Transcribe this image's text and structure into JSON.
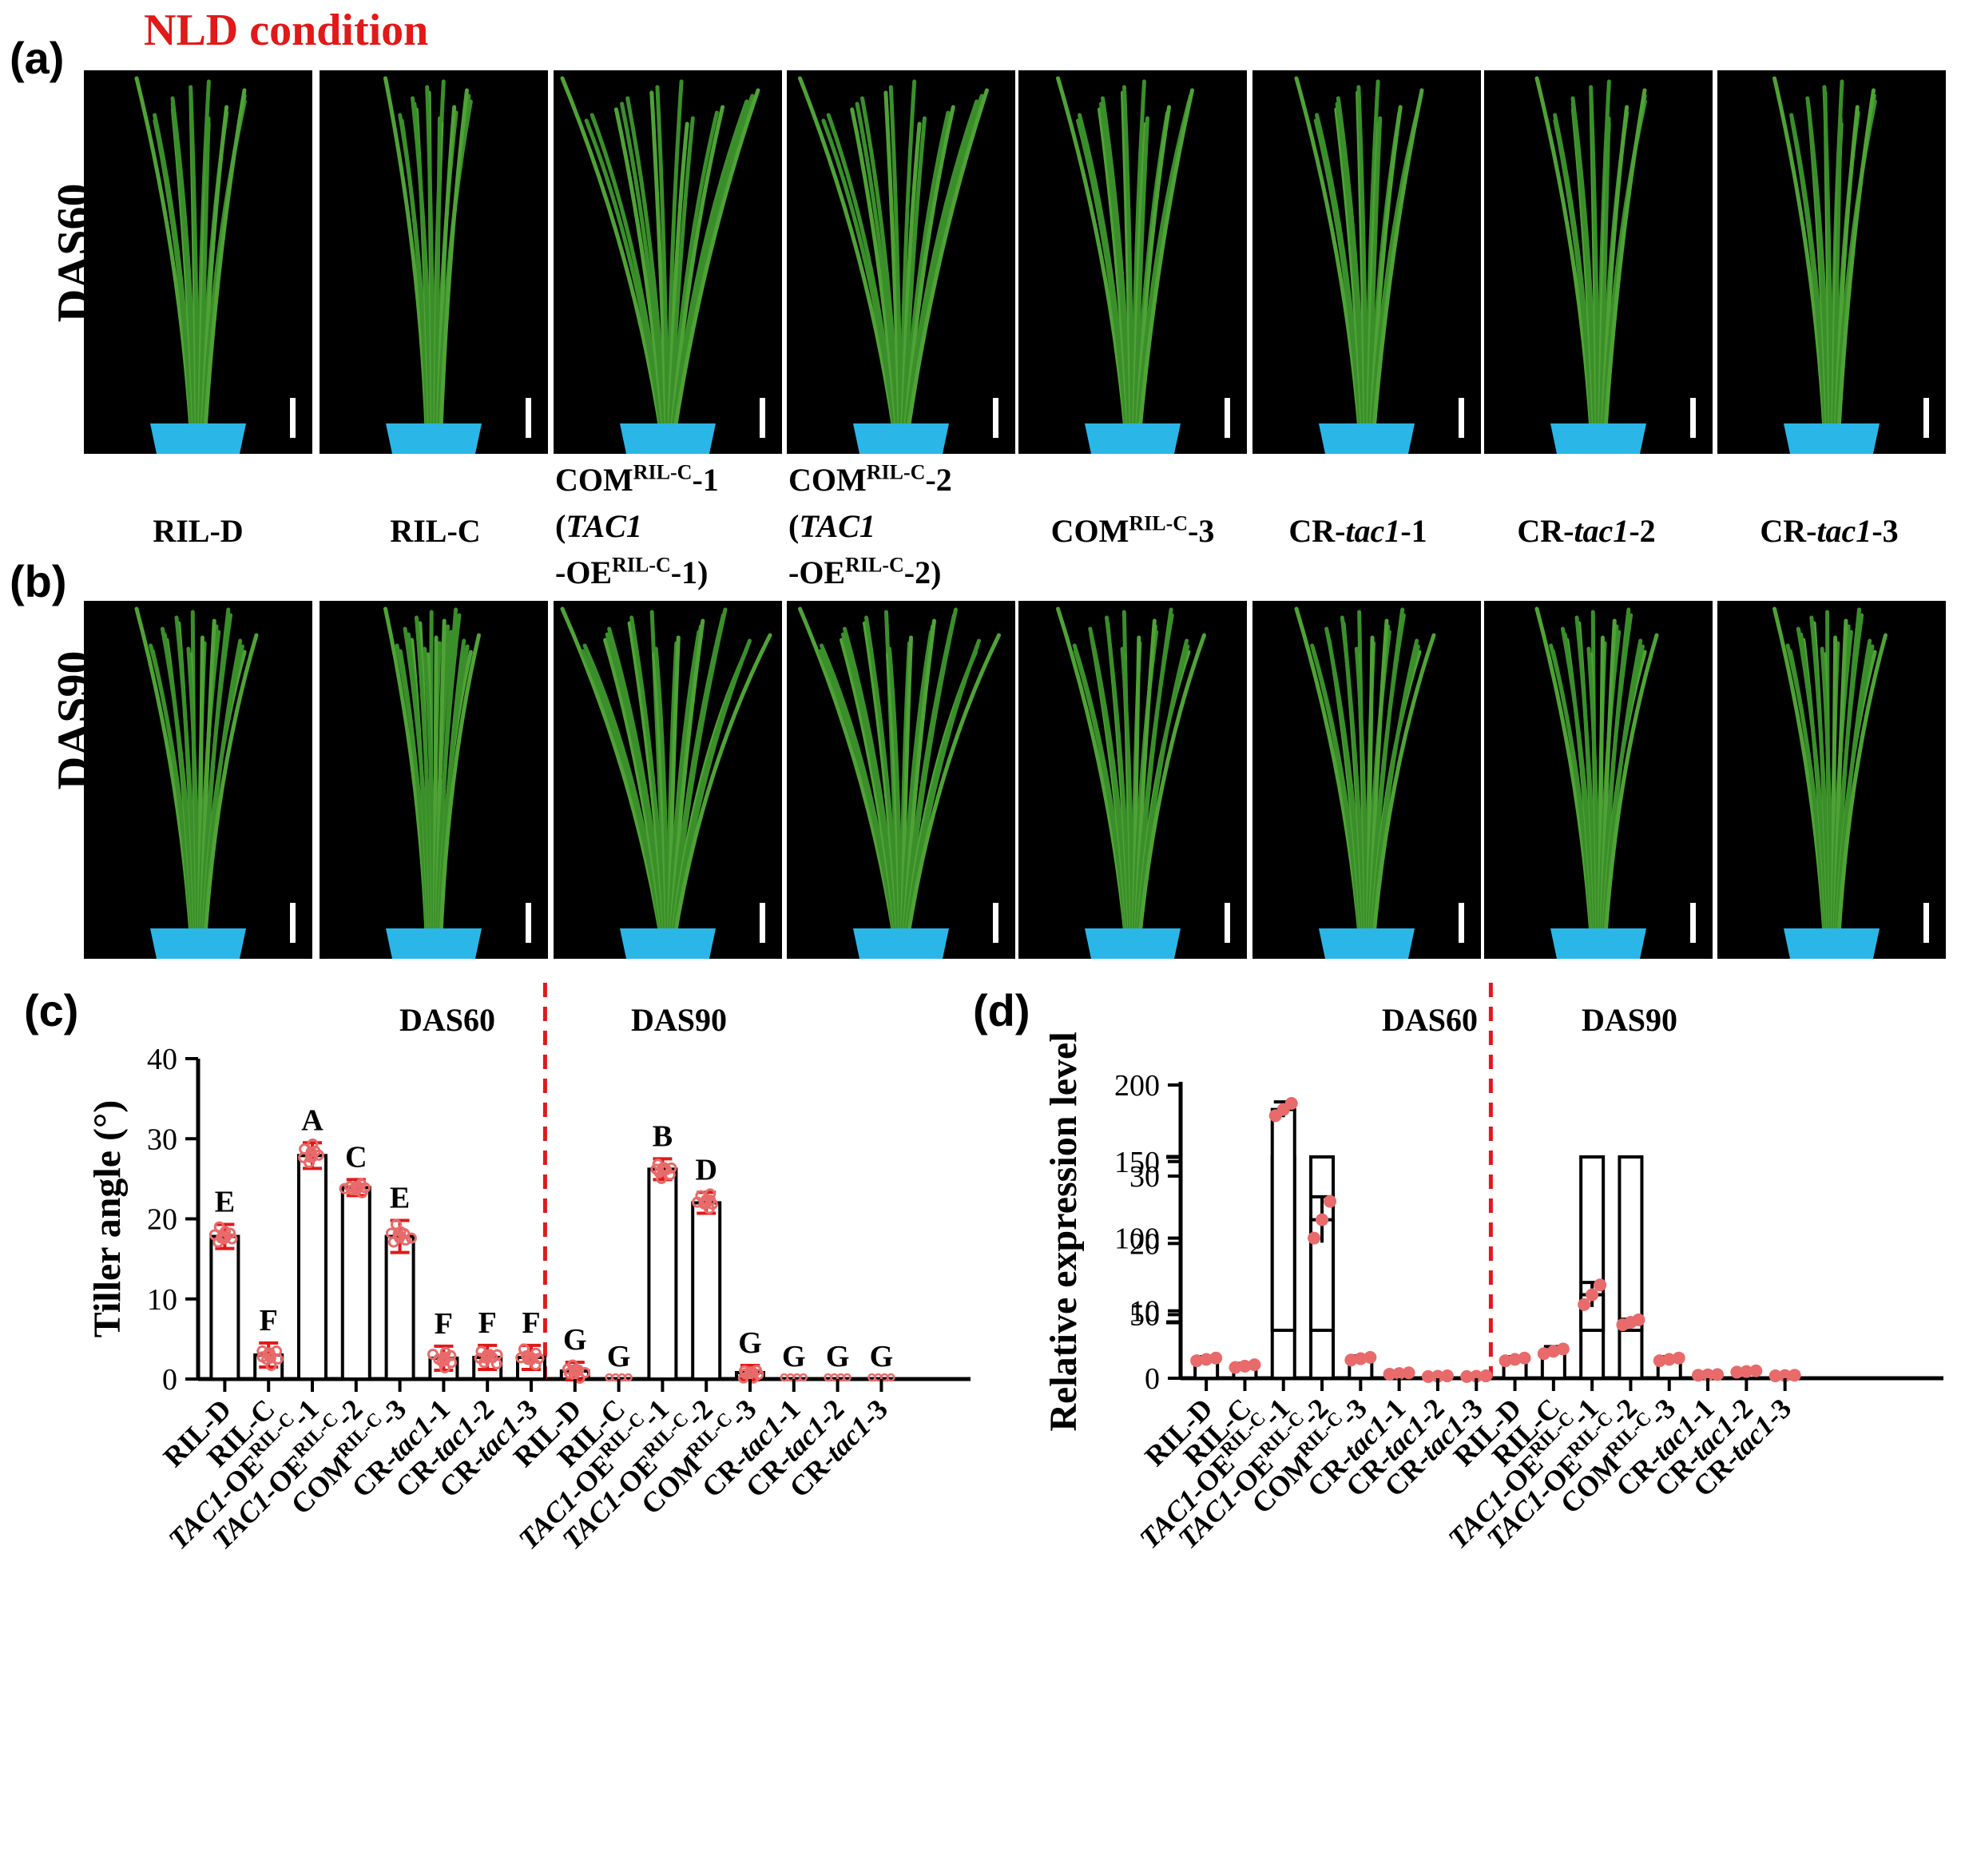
{
  "panel_labels": {
    "a": "(a)",
    "b": "(b)",
    "c": "(c)",
    "d": "(d)"
  },
  "condition": "NLD condition",
  "rows": {
    "a": "DAS60",
    "b": "DAS90"
  },
  "genotypes": [
    {
      "main": "RIL-D"
    },
    {
      "main": "RIL-C"
    },
    {
      "pre": "COM",
      "sup": "RIL-C",
      "post": "-1",
      "l2": "(TAC1",
      "l3a": "-OE",
      "l3sup": "RIL-C",
      "l3b": "-1)"
    },
    {
      "pre": "COM",
      "sup": "RIL-C",
      "post": "-2",
      "l2": "(TAC1",
      "l3a": "-OE",
      "l3sup": "RIL-C",
      "l3b": "-2)"
    },
    {
      "pre": "COM",
      "sup": "RIL-C",
      "post": "-3"
    },
    {
      "pre": "CR-",
      "it": "tac1",
      "post": "-1"
    },
    {
      "pre": "CR-",
      "it": "tac1",
      "post": "-2"
    },
    {
      "pre": "CR-",
      "it": "tac1",
      "post": "-3"
    }
  ],
  "colors": {
    "accent": "#e11919",
    "point": "#e86a6a",
    "pot": "#2bb6e8",
    "leaf": "#3a8f2a"
  },
  "chart_data": [
    {
      "type": "bar",
      "title": "",
      "ylabel": "Tiller angle (°)",
      "ylim": [
        0,
        40
      ],
      "yticks": [
        0,
        10,
        20,
        30,
        40
      ],
      "group_labels": [
        "DAS60",
        "DAS90"
      ],
      "categories": [
        "RIL-D",
        "RIL-C",
        "TAC1-OE^RIL-C-1",
        "TAC1-OE^RIL-C-2",
        "COM^RIL-C-3",
        "CR-tac1-1",
        "CR-tac1-2",
        "CR-tac1-3",
        "RIL-D",
        "RIL-C",
        "TAC1-OE^RIL-C-1",
        "TAC1-OE^RIL-C-2",
        "COM^RIL-C-3",
        "CR-tac1-1",
        "CR-tac1-2",
        "CR-tac1-3"
      ],
      "values": [
        17.8,
        3.0,
        27.9,
        23.9,
        17.8,
        2.6,
        2.7,
        2.7,
        1.0,
        0.0,
        26.2,
        22.0,
        0.8,
        0.0,
        0.0,
        0.0
      ],
      "errors": [
        1.5,
        1.5,
        1.6,
        1.0,
        2.0,
        1.5,
        1.5,
        1.5,
        1.1,
        0.0,
        1.3,
        1.3,
        0.9,
        0.0,
        0.0,
        0.0
      ],
      "letters": [
        "E",
        "F",
        "A",
        "C",
        "E",
        "F",
        "F",
        "F",
        "G",
        "G",
        "B",
        "D",
        "G",
        "G",
        "G",
        "G"
      ]
    },
    {
      "type": "bar",
      "title": "",
      "ylabel": "Relative expression level",
      "ylim_lower": [
        0,
        30
      ],
      "ylim_upper": [
        45,
        200
      ],
      "yticks_lower": [
        0,
        10,
        20,
        30
      ],
      "yticks_upper": [
        50,
        100,
        150,
        200
      ],
      "axis_break": true,
      "group_labels": [
        "DAS60",
        "DAS90"
      ],
      "categories": [
        "RIL-D",
        "RIL-C",
        "TAC1-OE^RIL-C-1",
        "TAC1-OE^RIL-C-2",
        "COM^RIL-C-3",
        "CR-tac1-1",
        "CR-tac1-2",
        "CR-tac1-3",
        "RIL-D",
        "RIL-C",
        "TAC1-OE^RIL-C-1",
        "TAC1-OE^RIL-C-2",
        "COM^RIL-C-3",
        "CR-tac1-1",
        "CR-tac1-2",
        "CR-tac1-3"
      ],
      "values": [
        2.8,
        1.8,
        184,
        112,
        2.9,
        0.7,
        0.3,
        0.3,
        2.8,
        4.0,
        63,
        45,
        2.8,
        0.5,
        1.0,
        0.4
      ],
      "errors": [
        0.4,
        0.4,
        5,
        15,
        0.4,
        0.2,
        0.1,
        0.1,
        0.4,
        0.7,
        8,
        2,
        0.4,
        0.1,
        0.2,
        0.1
      ]
    }
  ]
}
